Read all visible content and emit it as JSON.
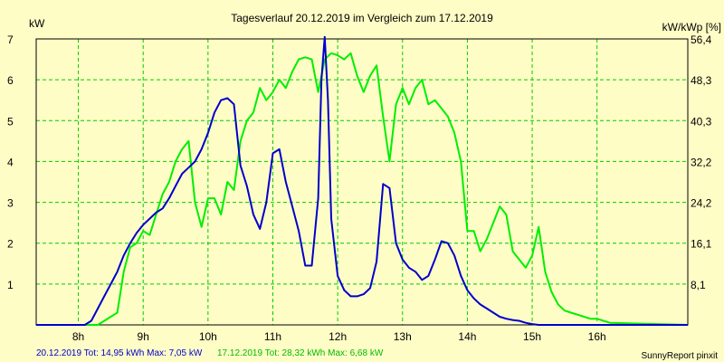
{
  "chart_data": {
    "type": "line",
    "title": "Tagesverlauf 20.12.2019 im Vergleich zum 17.12.2019",
    "ylabel_left": "kW",
    "ylabel_right": "kW/kWp [%]",
    "footer_left_a": "20.12.2019 Tot: 14,95 kWh Max: 7,05 kW",
    "footer_left_b": "17.12.2019 Tot: 28,32 kWh Max: 6,68 kW",
    "footer_right": "SunnyReport pinxit",
    "xlim": [
      7.35,
      17.4
    ],
    "ylim": [
      0,
      7
    ],
    "grid": true,
    "x_ticks": [
      8,
      9,
      10,
      11,
      12,
      13,
      14,
      15,
      16
    ],
    "x_tick_labels": [
      "8h",
      "9h",
      "10h",
      "11h",
      "12h",
      "13h",
      "14h",
      "15h",
      "16h"
    ],
    "y_ticks": [
      1,
      2,
      3,
      4,
      5,
      6,
      7
    ],
    "y_tick_labels": [
      "1",
      "2",
      "3",
      "4",
      "5",
      "6",
      "7"
    ],
    "y2_ticks": [
      1,
      2,
      3,
      4,
      5,
      6,
      7
    ],
    "y2_tick_labels": [
      "8,1",
      "16,1",
      "24,2",
      "32,2",
      "40,3",
      "48,3",
      "56,4"
    ],
    "colors": {
      "series_0": "#0000cc",
      "series_1": "#00ee00",
      "grid": "#00cc00",
      "background": "#fffdc6"
    },
    "series": [
      {
        "name": "20.12.2019",
        "x": [
          7.35,
          8.1,
          8.2,
          8.3,
          8.4,
          8.5,
          8.6,
          8.7,
          8.8,
          8.9,
          9.0,
          9.1,
          9.2,
          9.3,
          9.4,
          9.5,
          9.6,
          9.7,
          9.8,
          9.9,
          10.0,
          10.1,
          10.2,
          10.3,
          10.4,
          10.5,
          10.6,
          10.7,
          10.8,
          10.9,
          11.0,
          11.1,
          11.2,
          11.3,
          11.4,
          11.5,
          11.6,
          11.7,
          11.75,
          11.8,
          11.85,
          11.9,
          12.0,
          12.1,
          12.2,
          12.3,
          12.4,
          12.5,
          12.6,
          12.7,
          12.8,
          12.9,
          13.0,
          13.1,
          13.2,
          13.3,
          13.4,
          13.5,
          13.6,
          13.7,
          13.8,
          13.9,
          14.0,
          14.1,
          14.2,
          14.3,
          14.4,
          14.5,
          14.6,
          14.7,
          14.8,
          14.9,
          15.0,
          15.1,
          15.2,
          16.0,
          17.4
        ],
        "values": [
          0,
          0,
          0.1,
          0.4,
          0.7,
          1.0,
          1.3,
          1.7,
          2.0,
          2.25,
          2.45,
          2.6,
          2.75,
          2.85,
          3.1,
          3.4,
          3.7,
          3.85,
          4.0,
          4.3,
          4.7,
          5.2,
          5.5,
          5.55,
          5.4,
          3.9,
          3.4,
          2.7,
          2.35,
          3.0,
          4.2,
          4.3,
          3.5,
          2.9,
          2.3,
          1.45,
          1.45,
          3.1,
          6.0,
          7.05,
          5.5,
          2.6,
          1.2,
          0.85,
          0.7,
          0.7,
          0.75,
          0.9,
          1.55,
          3.45,
          3.35,
          2.0,
          1.6,
          1.4,
          1.3,
          1.1,
          1.2,
          1.6,
          2.05,
          2.0,
          1.7,
          1.2,
          0.85,
          0.65,
          0.5,
          0.4,
          0.3,
          0.2,
          0.15,
          0.12,
          0.1,
          0.05,
          0.02,
          0,
          0,
          0,
          0
        ]
      },
      {
        "name": "17.12.2019",
        "x": [
          7.35,
          8.3,
          8.5,
          8.6,
          8.7,
          8.8,
          8.9,
          9.0,
          9.1,
          9.2,
          9.3,
          9.4,
          9.5,
          9.6,
          9.7,
          9.8,
          9.9,
          10.0,
          10.1,
          10.2,
          10.3,
          10.4,
          10.5,
          10.6,
          10.7,
          10.8,
          10.9,
          11.0,
          11.1,
          11.2,
          11.3,
          11.4,
          11.5,
          11.6,
          11.7,
          11.8,
          11.9,
          12.0,
          12.1,
          12.2,
          12.3,
          12.4,
          12.5,
          12.6,
          12.7,
          12.8,
          12.9,
          13.0,
          13.1,
          13.2,
          13.3,
          13.4,
          13.5,
          13.6,
          13.7,
          13.8,
          13.9,
          14.0,
          14.1,
          14.2,
          14.3,
          14.4,
          14.5,
          14.6,
          14.7,
          14.8,
          14.9,
          15.0,
          15.1,
          15.2,
          15.3,
          15.4,
          15.5,
          15.6,
          15.7,
          15.8,
          15.9,
          16.0,
          16.1,
          16.2,
          17.4
        ],
        "values": [
          0,
          0,
          0.2,
          0.3,
          1.3,
          1.9,
          2.0,
          2.3,
          2.2,
          2.7,
          3.2,
          3.5,
          4.0,
          4.3,
          4.5,
          3.0,
          2.4,
          3.1,
          3.1,
          2.7,
          3.5,
          3.3,
          4.5,
          5.0,
          5.2,
          5.8,
          5.5,
          5.7,
          6.0,
          5.8,
          6.2,
          6.5,
          6.55,
          6.5,
          5.7,
          6.5,
          6.65,
          6.6,
          6.5,
          6.65,
          6.1,
          5.7,
          6.1,
          6.35,
          5.1,
          4.0,
          5.4,
          5.8,
          5.4,
          5.8,
          6.0,
          5.4,
          5.5,
          5.3,
          5.1,
          4.7,
          4.0,
          2.3,
          2.3,
          1.8,
          2.1,
          2.5,
          2.9,
          2.7,
          1.8,
          1.6,
          1.4,
          1.7,
          2.4,
          1.3,
          0.8,
          0.5,
          0.35,
          0.3,
          0.25,
          0.2,
          0.15,
          0.15,
          0.1,
          0.05,
          0
        ]
      }
    ]
  }
}
